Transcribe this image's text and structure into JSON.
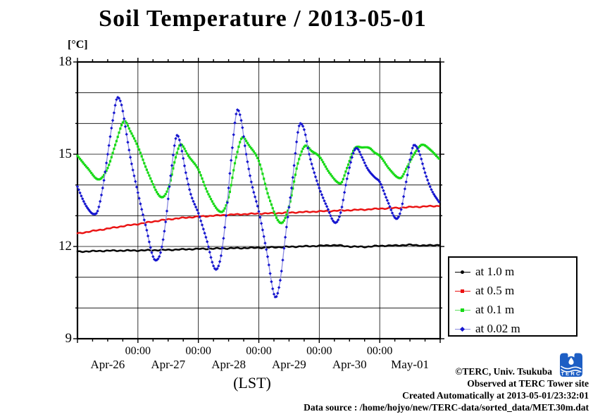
{
  "title": "Soil Temperature / 2013-05-01",
  "unit_label": "[°C]",
  "xlabel": "(LST)",
  "footer": {
    "lines": [
      "©TERC, Univ. Tsukuba",
      "Observed at TERC Tower site",
      "Created Automatically at 2013-05-01/23:32:01",
      "Data source : /home/hojyo/new/TERC-data/sorted_data/MET.30m.dat"
    ],
    "logo_text": "TERC",
    "logo_color": "#1d5ec4"
  },
  "chart_data": {
    "type": "line",
    "title": "Soil Temperature / 2013-05-01",
    "xlabel": "(LST)",
    "ylabel": "[°C]",
    "ylim": [
      9,
      18
    ],
    "y_label_step": 3,
    "y_gridline_step": 1,
    "x_range_hours": [
      0,
      143.5
    ],
    "x_origin": "2013-04-26 00:00 LST",
    "x_days": 6,
    "sample_interval_hours": 0.5,
    "grid": "on",
    "legend_position": "right-outside",
    "y_tick_labels": [
      "18",
      "15",
      "12",
      "9"
    ],
    "x_time_labels": [
      "00:00",
      "00:00",
      "00:00",
      "00:00",
      "00:00"
    ],
    "x_date_labels": [
      "Apr-26",
      "Apr-27",
      "Apr-28",
      "Apr-29",
      "Apr-30",
      "May-01"
    ],
    "series": [
      {
        "name": "at 1.0 m",
        "depth_m": 1.0,
        "marker": "circle",
        "color": "#000000",
        "line_color": "#000000",
        "noise": 0.012,
        "keyframes": [
          [
            0,
            11.83
          ],
          [
            12,
            11.86
          ],
          [
            24,
            11.87
          ],
          [
            36,
            11.89
          ],
          [
            48,
            11.92
          ],
          [
            60,
            11.94
          ],
          [
            72,
            11.96
          ],
          [
            84,
            11.99
          ],
          [
            96,
            12.02
          ],
          [
            102,
            12.04
          ],
          [
            108,
            12.0
          ],
          [
            114,
            11.99
          ],
          [
            120,
            12.02
          ],
          [
            126,
            12.03
          ],
          [
            132,
            12.05
          ],
          [
            138,
            12.03
          ],
          [
            143.5,
            12.05
          ]
        ]
      },
      {
        "name": "at 0.5 m",
        "depth_m": 0.5,
        "marker": "square",
        "color": "#ea1111",
        "line_color": "#ea1111",
        "noise": 0.012,
        "keyframes": [
          [
            0,
            12.42
          ],
          [
            6,
            12.5
          ],
          [
            12,
            12.58
          ],
          [
            18,
            12.66
          ],
          [
            24,
            12.73
          ],
          [
            30,
            12.81
          ],
          [
            36,
            12.88
          ],
          [
            42,
            12.93
          ],
          [
            48,
            12.97
          ],
          [
            54,
            13.0
          ],
          [
            60,
            13.03
          ],
          [
            66,
            13.05
          ],
          [
            72,
            13.07
          ],
          [
            78,
            13.08
          ],
          [
            84,
            13.1
          ],
          [
            90,
            13.12
          ],
          [
            96,
            13.14
          ],
          [
            102,
            13.16
          ],
          [
            108,
            13.18
          ],
          [
            114,
            13.2
          ],
          [
            120,
            13.23
          ],
          [
            126,
            13.25
          ],
          [
            132,
            13.28
          ],
          [
            138,
            13.3
          ],
          [
            143.5,
            13.32
          ]
        ]
      },
      {
        "name": "at 0.1 m",
        "depth_m": 0.1,
        "marker": "square",
        "color": "#16d916",
        "line_color": "#5fe05f",
        "noise": 0,
        "keyframes": [
          [
            0,
            14.95
          ],
          [
            4,
            14.55
          ],
          [
            8.4,
            14.18
          ],
          [
            12,
            14.55
          ],
          [
            15,
            15.3
          ],
          [
            18.7,
            16.08
          ],
          [
            21,
            15.75
          ],
          [
            24,
            15.25
          ],
          [
            28,
            14.4
          ],
          [
            33.6,
            13.6
          ],
          [
            36.5,
            14.0
          ],
          [
            39,
            14.9
          ],
          [
            41,
            15.32
          ],
          [
            44,
            14.95
          ],
          [
            48,
            14.5
          ],
          [
            52,
            13.7
          ],
          [
            57.2,
            13.12
          ],
          [
            60,
            13.6
          ],
          [
            63,
            14.9
          ],
          [
            65.6,
            15.55
          ],
          [
            68,
            15.3
          ],
          [
            72,
            14.78
          ],
          [
            76,
            13.6
          ],
          [
            80.9,
            12.76
          ],
          [
            84,
            13.3
          ],
          [
            87.5,
            14.7
          ],
          [
            90.7,
            15.28
          ],
          [
            93,
            15.1
          ],
          [
            96,
            14.93
          ],
          [
            100,
            14.4
          ],
          [
            104.4,
            14.05
          ],
          [
            107,
            14.55
          ],
          [
            110,
            15.18
          ],
          [
            113,
            15.22
          ],
          [
            116,
            15.2
          ],
          [
            118,
            15.05
          ],
          [
            120,
            14.95
          ],
          [
            124,
            14.5
          ],
          [
            128.1,
            14.22
          ],
          [
            131,
            14.6
          ],
          [
            134,
            15.05
          ],
          [
            137,
            15.31
          ],
          [
            140,
            15.15
          ],
          [
            143.5,
            14.86
          ]
        ]
      },
      {
        "name": "at 0.02 m",
        "depth_m": 0.02,
        "marker": "diamond",
        "color": "#1515cf",
        "line_color": "#8a8ae0",
        "noise": 0,
        "keyframes": [
          [
            0,
            13.95
          ],
          [
            2,
            13.55
          ],
          [
            4,
            13.25
          ],
          [
            6.5,
            13.05
          ],
          [
            8,
            13.15
          ],
          [
            10,
            13.9
          ],
          [
            12,
            15.0
          ],
          [
            14,
            16.1
          ],
          [
            16,
            16.85
          ],
          [
            17.5,
            16.6
          ],
          [
            19,
            15.9
          ],
          [
            21,
            14.9
          ],
          [
            24,
            13.75
          ],
          [
            27,
            12.7
          ],
          [
            31,
            11.55
          ],
          [
            33,
            11.8
          ],
          [
            35,
            12.8
          ],
          [
            37,
            14.3
          ],
          [
            39.6,
            15.62
          ],
          [
            41,
            15.3
          ],
          [
            43,
            14.4
          ],
          [
            45,
            13.7
          ],
          [
            48,
            13.08
          ],
          [
            51,
            12.3
          ],
          [
            55,
            11.25
          ],
          [
            57,
            11.7
          ],
          [
            59,
            13.0
          ],
          [
            61,
            14.8
          ],
          [
            63.6,
            16.45
          ],
          [
            65,
            16.1
          ],
          [
            67,
            15.0
          ],
          [
            69,
            14.1
          ],
          [
            72,
            13.14
          ],
          [
            75,
            11.9
          ],
          [
            78.7,
            10.35
          ],
          [
            80.5,
            10.9
          ],
          [
            82.5,
            12.3
          ],
          [
            85,
            13.9
          ],
          [
            88.5,
            16.0
          ],
          [
            90,
            15.8
          ],
          [
            92,
            15.0
          ],
          [
            94,
            14.4
          ],
          [
            96,
            13.9
          ],
          [
            99,
            13.3
          ],
          [
            102.4,
            12.77
          ],
          [
            104.5,
            13.1
          ],
          [
            107,
            14.2
          ],
          [
            110.8,
            15.2
          ],
          [
            113,
            14.9
          ],
          [
            115,
            14.55
          ],
          [
            118,
            14.25
          ],
          [
            120,
            14.1
          ],
          [
            123,
            13.5
          ],
          [
            126.7,
            12.9
          ],
          [
            128.5,
            13.2
          ],
          [
            130.5,
            14.1
          ],
          [
            133.7,
            15.3
          ],
          [
            135.5,
            15.1
          ],
          [
            138,
            14.4
          ],
          [
            140.5,
            13.85
          ],
          [
            143.5,
            13.45
          ]
        ]
      }
    ]
  }
}
